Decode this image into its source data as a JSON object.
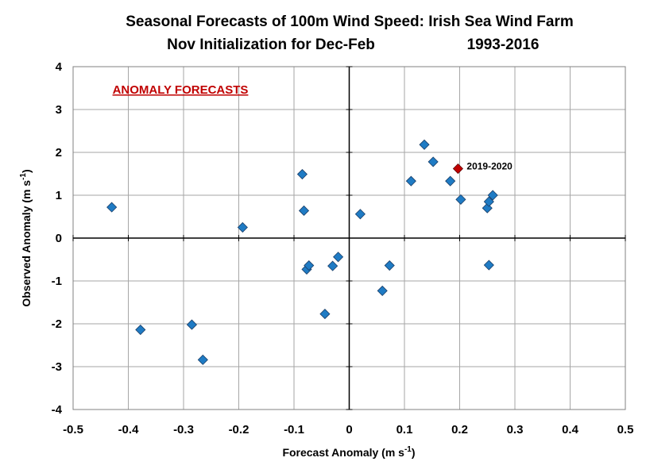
{
  "chart_data": {
    "type": "scatter",
    "title_line1": "Seasonal Forecasts of 100m Wind Speed: Irish Sea Wind Farm",
    "title_line2_left": "Nov Initialization for Dec-Feb",
    "title_line2_right": "1993-2016",
    "inset_label": "ANOMALY FORECASTS",
    "xlabel": "Forecast Anomaly (m s",
    "xlabel_sup": "-1",
    "xlabel_end": ")",
    "ylabel": "Observed Anomaly (m s",
    "ylabel_sup": "-1",
    "ylabel_end": ")",
    "xlim": [
      -0.5,
      0.5
    ],
    "ylim": [
      -4,
      4
    ],
    "x_ticks": [
      "-0.5",
      "-0.4",
      "-0.3",
      "-0.2",
      "-0.1",
      "0",
      "0.1",
      "0.2",
      "0.3",
      "0.4",
      "0.5"
    ],
    "x_tick_values": [
      -0.5,
      -0.4,
      -0.3,
      -0.2,
      -0.1,
      0,
      0.1,
      0.2,
      0.3,
      0.4,
      0.5
    ],
    "y_ticks": [
      "4",
      "3",
      "2",
      "1",
      "0",
      "-1",
      "-2",
      "-3",
      "-4"
    ],
    "y_tick_values": [
      4,
      3,
      2,
      1,
      0,
      -1,
      -2,
      -3,
      -4
    ],
    "grid": true,
    "series": [
      {
        "color": "#1f7bc4",
        "edge": "#1a3d66",
        "marker": "diamond",
        "points": [
          [
            -0.43,
            0.72
          ],
          [
            -0.378,
            -2.14
          ],
          [
            -0.285,
            -2.02
          ],
          [
            -0.265,
            -2.84
          ],
          [
            -0.193,
            0.25
          ],
          [
            -0.085,
            1.49
          ],
          [
            -0.082,
            0.64
          ],
          [
            -0.077,
            -0.73
          ],
          [
            -0.073,
            -0.64
          ],
          [
            -0.044,
            -1.77
          ],
          [
            -0.03,
            -0.65
          ],
          [
            -0.02,
            -0.44
          ],
          [
            0.02,
            0.56
          ],
          [
            0.06,
            -1.23
          ],
          [
            0.073,
            -0.64
          ],
          [
            0.112,
            1.33
          ],
          [
            0.136,
            2.18
          ],
          [
            0.152,
            1.78
          ],
          [
            0.183,
            1.33
          ],
          [
            0.202,
            0.9
          ],
          [
            0.25,
            0.7
          ],
          [
            0.253,
            0.85
          ],
          [
            0.26,
            1.0
          ],
          [
            0.253,
            -0.63
          ]
        ]
      },
      {
        "name": "2019-2020",
        "color": "#c00000",
        "edge": "#600000",
        "marker": "diamond",
        "points": [
          [
            0.197,
            1.62
          ]
        ]
      }
    ]
  }
}
